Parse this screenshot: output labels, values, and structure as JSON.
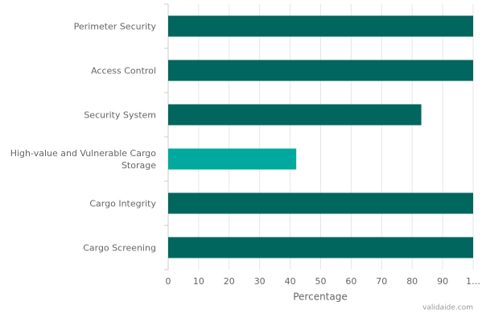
{
  "chart_data": {
    "type": "barh",
    "categories": [
      "Perimeter Security",
      "Access Control",
      "Security System",
      "High-value and Vulnerable Cargo Storage",
      "Cargo Integrity",
      "Cargo Screening"
    ],
    "values": [
      100,
      100,
      83,
      42,
      100,
      100
    ],
    "colors": [
      "#00665e",
      "#00665e",
      "#00665e",
      "#00a99d",
      "#00665e",
      "#00665e"
    ],
    "xlim": [
      0,
      100
    ],
    "xticks": [
      0,
      10,
      20,
      30,
      40,
      50,
      60,
      70,
      80,
      90,
      {
        "value": 100,
        "label": "1…"
      }
    ],
    "xlabel": "Percentage",
    "grid": true,
    "credit": "validaide.com"
  }
}
